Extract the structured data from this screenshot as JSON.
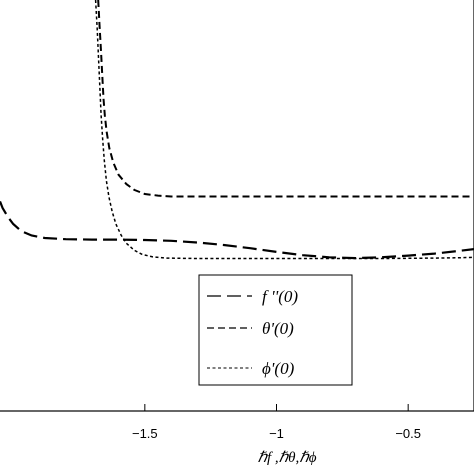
{
  "chart_data": {
    "type": "line",
    "xlabel": "ℏf ,ℏθ,ℏϕ",
    "x_ticks": [
      "−1.5",
      "−1",
      "−0.5"
    ],
    "x_tick_values": [
      -1.5,
      -1.0,
      -0.5
    ],
    "xlim": [
      -2.05,
      -0.25
    ],
    "ylim": [
      0,
      1
    ],
    "grid": false,
    "legend_position": "bottom-center",
    "series": [
      {
        "name": "f ''(0)",
        "dash": "long-dash",
        "points": [
          [
            -2.05,
            0.51
          ],
          [
            -2.04,
            0.494
          ],
          [
            -2.02,
            0.472
          ],
          [
            -2.0,
            0.455
          ],
          [
            -1.97,
            0.438
          ],
          [
            -1.93,
            0.427
          ],
          [
            -1.88,
            0.421
          ],
          [
            -1.8,
            0.418
          ],
          [
            -1.7,
            0.417
          ],
          [
            -1.6,
            0.417
          ],
          [
            -1.5,
            0.416
          ],
          [
            -1.4,
            0.414
          ],
          [
            -1.3,
            0.41
          ],
          [
            -1.2,
            0.404
          ],
          [
            -1.1,
            0.396
          ],
          [
            -1.0,
            0.387
          ],
          [
            -0.9,
            0.379
          ],
          [
            -0.8,
            0.374
          ],
          [
            -0.7,
            0.372
          ],
          [
            -0.6,
            0.374
          ],
          [
            -0.5,
            0.378
          ],
          [
            -0.4,
            0.383
          ],
          [
            -0.3,
            0.39
          ],
          [
            -0.25,
            0.394
          ]
        ]
      },
      {
        "name": "θ'(0)",
        "dash": "dash",
        "points": [
          [
            -1.677,
            1.0
          ],
          [
            -1.672,
            0.94
          ],
          [
            -1.667,
            0.88
          ],
          [
            -1.662,
            0.82
          ],
          [
            -1.657,
            0.76
          ],
          [
            -1.652,
            0.72
          ],
          [
            -1.645,
            0.68
          ],
          [
            -1.635,
            0.64
          ],
          [
            -1.62,
            0.605
          ],
          [
            -1.6,
            0.575
          ],
          [
            -1.57,
            0.552
          ],
          [
            -1.54,
            0.538
          ],
          [
            -1.5,
            0.528
          ],
          [
            -1.45,
            0.524
          ],
          [
            -1.4,
            0.522
          ],
          [
            -1.3,
            0.522
          ],
          [
            -1.0,
            0.522
          ],
          [
            -0.5,
            0.522
          ],
          [
            -0.25,
            0.522
          ]
        ]
      },
      {
        "name": "ϕ'(0)",
        "dash": "dot",
        "points": [
          [
            -1.687,
            1.0
          ],
          [
            -1.681,
            0.93
          ],
          [
            -1.676,
            0.86
          ],
          [
            -1.671,
            0.79
          ],
          [
            -1.666,
            0.72
          ],
          [
            -1.66,
            0.66
          ],
          [
            -1.654,
            0.61
          ],
          [
            -1.646,
            0.56
          ],
          [
            -1.636,
            0.52
          ],
          [
            -1.624,
            0.485
          ],
          [
            -1.61,
            0.455
          ],
          [
            -1.59,
            0.428
          ],
          [
            -1.57,
            0.408
          ],
          [
            -1.54,
            0.391
          ],
          [
            -1.51,
            0.381
          ],
          [
            -1.47,
            0.375
          ],
          [
            -1.42,
            0.372
          ],
          [
            -1.3,
            0.371
          ],
          [
            -1.0,
            0.371
          ],
          [
            -0.6,
            0.371
          ],
          [
            -0.4,
            0.372
          ],
          [
            -0.3,
            0.373
          ],
          [
            -0.25,
            0.374
          ]
        ]
      }
    ]
  }
}
